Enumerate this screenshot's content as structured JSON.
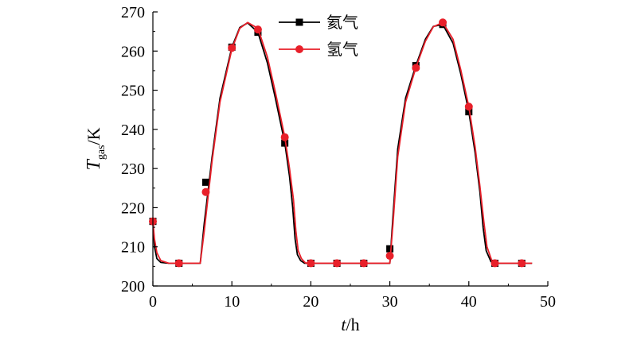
{
  "chart_data": {
    "type": "line",
    "xlabel": {
      "italic": "t",
      "rest": "/h"
    },
    "ylabel": {
      "italic": "T",
      "sub": "gas",
      "rest": "/K"
    },
    "xlim": [
      0,
      50
    ],
    "ylim": [
      200,
      270
    ],
    "xticks": [
      "0",
      "10",
      "20",
      "30",
      "40",
      "50"
    ],
    "yticks": [
      "200",
      "210",
      "220",
      "230",
      "240",
      "250",
      "260",
      "270"
    ],
    "grid": false,
    "legend_position": "top-center",
    "series": [
      {
        "name": "氦气",
        "color": "#000000",
        "marker": "square",
        "x": [
          0,
          0.2,
          0.5,
          1.0,
          2,
          3.3,
          5,
          6.0,
          6.5,
          7.5,
          8.5,
          10,
          11,
          12,
          13.3,
          14.5,
          15.5,
          16.7,
          17.3,
          17.7,
          18.0,
          18.3,
          18.7,
          19.2,
          20,
          23.3,
          26.7,
          28,
          30.0,
          30.4,
          31,
          32,
          33.3,
          34.5,
          35.5,
          36.7,
          38,
          39,
          40,
          40.8,
          41.4,
          41.8,
          42.2,
          42.8,
          43.3,
          45,
          46.7,
          48
        ],
        "y": [
          216.5,
          210,
          207,
          206,
          205.8,
          205.8,
          205.8,
          205.8,
          216,
          233,
          248,
          261,
          266,
          267.2,
          264.8,
          257,
          248,
          236.5,
          228,
          220,
          212,
          208,
          206.5,
          205.8,
          205.8,
          205.8,
          205.8,
          205.8,
          205.8,
          218,
          235,
          248,
          256.3,
          263,
          266.3,
          266.8,
          262,
          254,
          244.5,
          234,
          224,
          215,
          209,
          206.2,
          205.8,
          205.8,
          205.8,
          205.8
        ],
        "markers": [
          [
            0,
            216.5
          ],
          [
            3.3,
            205.8
          ],
          [
            6.7,
            226.5
          ],
          [
            10,
            261
          ],
          [
            13.3,
            264.8
          ],
          [
            16.7,
            236.5
          ],
          [
            20,
            205.8
          ],
          [
            23.3,
            205.8
          ],
          [
            26.7,
            205.8
          ],
          [
            30,
            209.5
          ],
          [
            33.3,
            256.3
          ],
          [
            36.7,
            266.8
          ],
          [
            40,
            244.5
          ],
          [
            43.3,
            205.8
          ],
          [
            46.7,
            205.8
          ]
        ]
      },
      {
        "name": "氢气",
        "color": "#e8202a",
        "marker": "circle",
        "x": [
          0,
          0.2,
          0.5,
          1.0,
          2,
          3.3,
          5,
          6.0,
          6.5,
          7.5,
          8.5,
          10,
          11,
          12,
          13.3,
          14.5,
          15.5,
          16.7,
          17.3,
          17.8,
          18.1,
          18.4,
          18.8,
          19.3,
          20,
          23.3,
          26.7,
          28,
          30.0,
          30.4,
          31,
          32,
          33.3,
          34.5,
          35.5,
          36.7,
          38,
          39,
          40,
          40.8,
          41.4,
          41.9,
          42.3,
          42.9,
          43.3,
          45,
          46.7,
          48
        ],
        "y": [
          216.5,
          212,
          208.5,
          206.5,
          205.8,
          205.8,
          205.8,
          205.8,
          214,
          232,
          247,
          260.5,
          265.8,
          267.3,
          265.8,
          258.5,
          249.5,
          238,
          230,
          222,
          214,
          209,
          207,
          205.9,
          205.8,
          205.8,
          205.8,
          205.8,
          205.8,
          216,
          233,
          247,
          255.8,
          262.5,
          266.2,
          267.3,
          263,
          255,
          245.8,
          235.5,
          225.5,
          216.5,
          210,
          206.5,
          205.8,
          205.8,
          205.8,
          205.8
        ],
        "markers": [
          [
            0,
            216.5
          ],
          [
            3.3,
            205.8
          ],
          [
            6.7,
            224
          ],
          [
            10,
            260.8
          ],
          [
            13.3,
            265.5
          ],
          [
            16.7,
            238
          ],
          [
            20,
            205.8
          ],
          [
            23.3,
            205.8
          ],
          [
            26.7,
            205.8
          ],
          [
            30,
            207.7
          ],
          [
            33.3,
            255.7
          ],
          [
            36.7,
            267.3
          ],
          [
            40,
            245.8
          ],
          [
            43.3,
            205.8
          ],
          [
            46.7,
            205.8
          ]
        ]
      }
    ]
  }
}
